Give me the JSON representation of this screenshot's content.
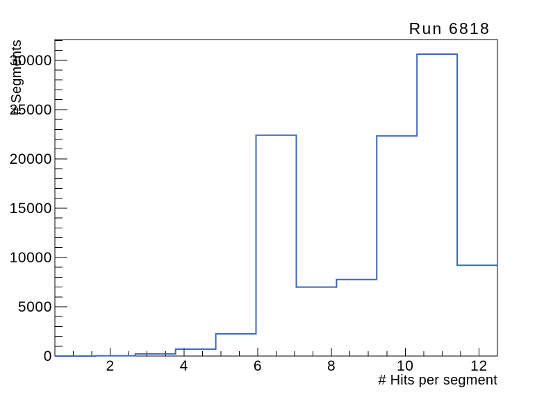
{
  "title": "Run 6818",
  "chart_data": {
    "type": "bar",
    "subtype": "step-histogram",
    "title": "Run 6818",
    "xlabel": "# Hits per segment",
    "ylabel": "# Segments",
    "x_range": [
      0.5,
      12.5
    ],
    "y_range": [
      0,
      32100
    ],
    "bin_edges": [
      0.5,
      1.5909,
      2.6818,
      3.7727,
      4.8636,
      5.9545,
      7.0455,
      8.1364,
      9.2273,
      10.3182,
      11.4091,
      12.5
    ],
    "counts": [
      0,
      30,
      220,
      700,
      2250,
      22400,
      7000,
      7760,
      22330,
      30620,
      9200
    ],
    "x_major_ticks": [
      2,
      4,
      6,
      8,
      10,
      12
    ],
    "x_tick_labels": [
      "2",
      "4",
      "6",
      "8",
      "10",
      "12"
    ],
    "x_minor_tick_step": 0.5,
    "y_major_ticks": [
      0,
      5000,
      10000,
      15000,
      20000,
      25000,
      30000
    ],
    "y_tick_labels": [
      "0",
      "5000",
      "10000",
      "15000",
      "20000",
      "25000",
      "30000"
    ],
    "y_minor_tick_step": 1000,
    "line_color": "#3b65bd",
    "frame_color": "#000000",
    "grid": false,
    "legend": null
  }
}
